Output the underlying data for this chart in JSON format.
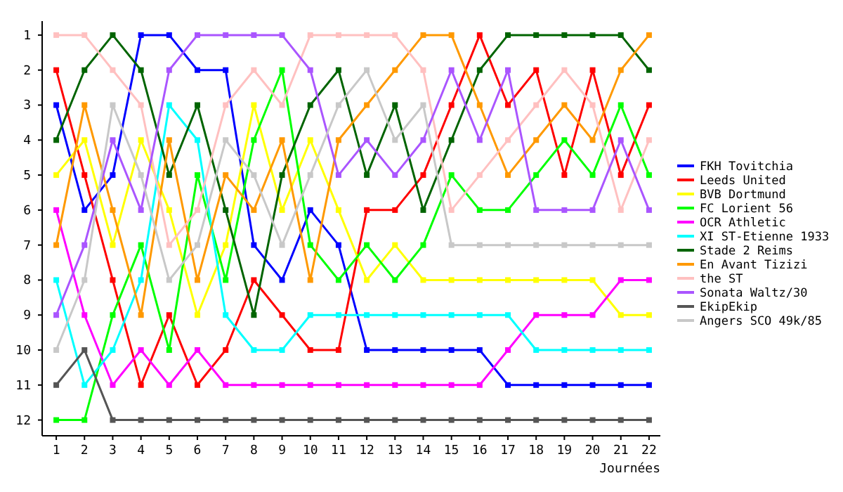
{
  "chart_data": {
    "type": "line",
    "xlabel": "Journées",
    "x": [
      1,
      2,
      3,
      4,
      5,
      6,
      7,
      8,
      9,
      10,
      11,
      12,
      13,
      14,
      15,
      16,
      17,
      18,
      19,
      20,
      21,
      22
    ],
    "xlim": [
      0.5,
      22.4
    ],
    "xticks": [
      1,
      2,
      3,
      4,
      5,
      6,
      7,
      8,
      9,
      10,
      11,
      12,
      13,
      14,
      15,
      16,
      17,
      18,
      19,
      20,
      21,
      22
    ],
    "ylim": [
      12.45,
      0.6
    ],
    "yticks": [
      1,
      2,
      3,
      4,
      5,
      6,
      7,
      8,
      9,
      10,
      11,
      12
    ],
    "grid": false,
    "legend": "right",
    "marker": "square",
    "line_style": "solid",
    "series": [
      {
        "name": "FKH Tovitchia",
        "color": "#0000ff",
        "values": [
          3,
          6,
          5,
          1,
          1,
          2,
          2,
          7,
          8,
          6,
          7,
          10,
          10,
          10,
          10,
          10,
          11,
          11,
          11,
          11,
          11,
          11
        ]
      },
      {
        "name": "Leeds United",
        "color": "#ff0000",
        "values": [
          2,
          5,
          8,
          11,
          9,
          11,
          10,
          8,
          9,
          10,
          10,
          6,
          6,
          5,
          3,
          1,
          3,
          2,
          5,
          2,
          5,
          3
        ]
      },
      {
        "name": "BVB Dortmund",
        "color": "#ffff00",
        "values": [
          5,
          4,
          7,
          4,
          6,
          9,
          7,
          3,
          6,
          4,
          6,
          8,
          7,
          8,
          8,
          8,
          8,
          8,
          8,
          8,
          9,
          9
        ]
      },
      {
        "name": "FC Lorient 56",
        "color": "#00ff00",
        "values": [
          12,
          12,
          9,
          7,
          10,
          5,
          8,
          4,
          2,
          7,
          8,
          7,
          8,
          7,
          5,
          6,
          6,
          5,
          4,
          5,
          3,
          5
        ]
      },
      {
        "name": "OCR Athletic",
        "color": "#ff00ff",
        "values": [
          6,
          9,
          11,
          10,
          11,
          10,
          11,
          11,
          11,
          11,
          11,
          11,
          11,
          11,
          11,
          11,
          10,
          9,
          9,
          9,
          8,
          8
        ]
      },
      {
        "name": "XI ST-Etienne 1933",
        "color": "#00ffff",
        "values": [
          8,
          11,
          10,
          8,
          3,
          4,
          9,
          10,
          10,
          9,
          9,
          9,
          9,
          9,
          9,
          9,
          9,
          10,
          10,
          10,
          10,
          10
        ]
      },
      {
        "name": "Stade 2 Reims",
        "color": "#006400",
        "values": [
          4,
          2,
          1,
          2,
          5,
          3,
          6,
          9,
          5,
          3,
          2,
          5,
          3,
          6,
          4,
          2,
          1,
          1,
          1,
          1,
          1,
          2
        ]
      },
      {
        "name": "En Avant Tizizi",
        "color": "#ff9900",
        "values": [
          7,
          3,
          6,
          9,
          4,
          8,
          5,
          6,
          4,
          8,
          4,
          3,
          2,
          1,
          1,
          3,
          5,
          4,
          3,
          4,
          2,
          1
        ]
      },
      {
        "name": "the ST",
        "color": "#ffc0c0",
        "values": [
          1,
          1,
          2,
          3,
          7,
          6,
          3,
          2,
          3,
          1,
          1,
          1,
          1,
          2,
          6,
          5,
          4,
          3,
          2,
          3,
          6,
          4
        ]
      },
      {
        "name": "Sonata Waltz/30",
        "color": "#aa55ff",
        "values": [
          9,
          7,
          4,
          6,
          2,
          1,
          1,
          1,
          1,
          2,
          5,
          4,
          5,
          4,
          2,
          4,
          2,
          6,
          6,
          6,
          4,
          6
        ]
      },
      {
        "name": "EkipEkip",
        "color": "#555555",
        "values": [
          11,
          10,
          12,
          12,
          12,
          12,
          12,
          12,
          12,
          12,
          12,
          12,
          12,
          12,
          12,
          12,
          12,
          12,
          12,
          12,
          12,
          12
        ]
      },
      {
        "name": "Angers SCO 49k/85",
        "color": "#c8c8c8",
        "values": [
          10,
          8,
          3,
          5,
          8,
          7,
          4,
          5,
          7,
          5,
          3,
          2,
          4,
          3,
          7,
          7,
          7,
          7,
          7,
          7,
          7,
          7
        ]
      }
    ]
  }
}
